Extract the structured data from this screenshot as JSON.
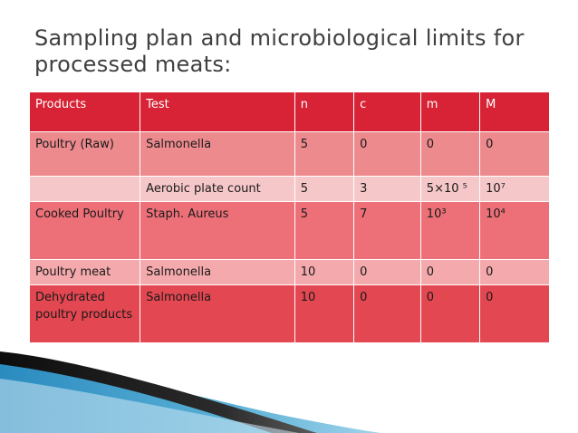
{
  "title": "Sampling plan and microbiological limits for processed meats:",
  "table": {
    "headers": [
      "Products",
      "Test",
      "n",
      "c",
      "m",
      "M"
    ],
    "rows": [
      {
        "product": "Poultry (Raw)",
        "test": "Salmonella",
        "n": "5",
        "c": "0",
        "m": "0",
        "M": "0"
      },
      {
        "product": "",
        "test": "Aerobic plate count",
        "n": "5",
        "c": "3",
        "m": "5×10 ⁵",
        "M": "10⁷"
      },
      {
        "product": "Cooked Poultry",
        "test": "Staph. Aureus",
        "n": "5",
        "c": "7",
        "m": "10³",
        "M": "10⁴"
      },
      {
        "product": "Poultry meat",
        "test": "Salmonella",
        "n": "10",
        "c": "0",
        "m": "0",
        "M": "0"
      },
      {
        "product": "Dehydrated poultry products",
        "test": "Salmonella",
        "n": "10",
        "c": "0",
        "m": "0",
        "M": "0"
      }
    ]
  },
  "colors": {
    "header": "#d72335",
    "row_raw": "#ec8a8e",
    "row_light": "#f6c7c9",
    "row_cooked": "#ed7078",
    "row_meat": "#f4a9ac",
    "row_dehydrated": "#e34751",
    "title_text": "#404040",
    "swoosh_dark": "#0d0d0d",
    "swoosh_blue": "#2a8bbf"
  }
}
